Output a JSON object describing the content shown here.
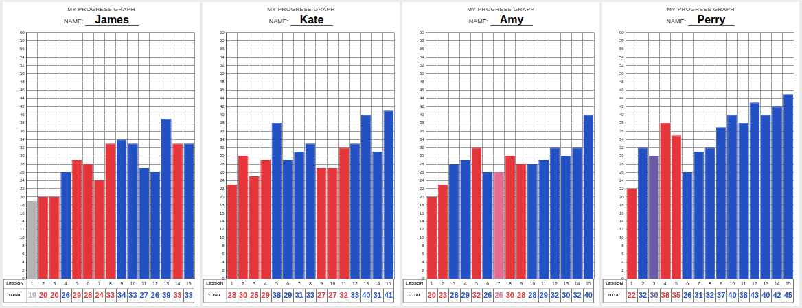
{
  "chart_data": [
    {
      "type": "bar",
      "title": "MY PROGRESS GRAPH",
      "name_label": "NAME:",
      "name": "James",
      "xlabel": "LESSON",
      "row_label": "TOTAL",
      "categories": [
        1,
        2,
        3,
        4,
        5,
        6,
        7,
        8,
        9,
        10,
        11,
        12,
        13,
        14,
        15
      ],
      "values": [
        19,
        20,
        20,
        26,
        29,
        28,
        24,
        33,
        34,
        33,
        27,
        26,
        39,
        33,
        33
      ],
      "colors": [
        "#b5b5b5",
        "#e4353b",
        "#e4353b",
        "#2350c2",
        "#e4353b",
        "#e4353b",
        "#e4353b",
        "#e4353b",
        "#2350c2",
        "#2350c2",
        "#2350c2",
        "#2350c2",
        "#2350c2",
        "#e4353b",
        "#2350c2"
      ],
      "ylim": [
        0,
        60
      ],
      "yticks": [
        0,
        2,
        4,
        6,
        8,
        10,
        12,
        14,
        16,
        18,
        20,
        22,
        24,
        26,
        28,
        30,
        32,
        34,
        36,
        38,
        40,
        42,
        44,
        46,
        48,
        50,
        52,
        54,
        56,
        58,
        60
      ],
      "grid": true,
      "data_labels": true
    },
    {
      "type": "bar",
      "title": "MY PROGRESS GRAPH",
      "name_label": "NAME:",
      "name": "Kate",
      "xlabel": "LESSON",
      "row_label": "TOTAL",
      "categories": [
        1,
        2,
        3,
        4,
        5,
        6,
        7,
        8,
        9,
        10,
        11,
        12,
        13,
        14,
        15
      ],
      "values": [
        23,
        30,
        25,
        29,
        38,
        29,
        31,
        33,
        27,
        27,
        32,
        33,
        40,
        31,
        41
      ],
      "colors": [
        "#e4353b",
        "#e4353b",
        "#e4353b",
        "#e4353b",
        "#2350c2",
        "#2350c2",
        "#2350c2",
        "#2350c2",
        "#e4353b",
        "#e4353b",
        "#e4353b",
        "#2350c2",
        "#2350c2",
        "#2350c2",
        "#2350c2"
      ],
      "ylim": [
        0,
        60
      ],
      "yticks": [
        0,
        2,
        4,
        6,
        8,
        10,
        12,
        14,
        16,
        18,
        20,
        22,
        24,
        26,
        28,
        30,
        32,
        34,
        36,
        38,
        40,
        42,
        44,
        46,
        48,
        50,
        52,
        54,
        56,
        58,
        60
      ],
      "grid": true,
      "data_labels": true
    },
    {
      "type": "bar",
      "title": "MY PROGRESS GRAPH",
      "name_label": "NAME:",
      "name": "Amy",
      "xlabel": "LESSON",
      "row_label": "TOTAL",
      "categories": [
        1,
        2,
        3,
        4,
        5,
        6,
        7,
        8,
        9,
        10,
        11,
        12,
        13,
        14,
        15
      ],
      "values": [
        20,
        23,
        28,
        29,
        32,
        26,
        26,
        30,
        28,
        28,
        29,
        32,
        30,
        32,
        40
      ],
      "colors": [
        "#e4353b",
        "#e4353b",
        "#2350c2",
        "#2350c2",
        "#e4353b",
        "#2350c2",
        "#e56a90",
        "#e4353b",
        "#e4353b",
        "#2350c2",
        "#2350c2",
        "#2350c2",
        "#2350c2",
        "#2350c2",
        "#2350c2"
      ],
      "ylim": [
        0,
        60
      ],
      "yticks": [
        0,
        2,
        4,
        6,
        8,
        10,
        12,
        14,
        16,
        18,
        20,
        22,
        24,
        26,
        28,
        30,
        32,
        34,
        36,
        38,
        40,
        42,
        44,
        46,
        48,
        50,
        52,
        54,
        56,
        58,
        60
      ],
      "grid": true,
      "data_labels": true
    },
    {
      "type": "bar",
      "title": "MY PROGRESS GRAPH",
      "name_label": "NAME:",
      "name": "Perry",
      "xlabel": "LESSON",
      "row_label": "TOTAL",
      "categories": [
        1,
        2,
        3,
        4,
        5,
        6,
        7,
        8,
        9,
        10,
        11,
        12,
        13,
        14,
        15
      ],
      "values": [
        22,
        32,
        30,
        38,
        35,
        26,
        31,
        32,
        37,
        40,
        38,
        43,
        40,
        42,
        45
      ],
      "colors": [
        "#e4353b",
        "#2350c2",
        "#6c5aa6",
        "#e4353b",
        "#e4353b",
        "#2350c2",
        "#2350c2",
        "#2350c2",
        "#2350c2",
        "#2350c2",
        "#2350c2",
        "#2350c2",
        "#2350c2",
        "#2350c2",
        "#2350c2"
      ],
      "ylim": [
        0,
        60
      ],
      "yticks": [
        0,
        2,
        4,
        6,
        8,
        10,
        12,
        14,
        16,
        18,
        20,
        22,
        24,
        26,
        28,
        30,
        32,
        34,
        36,
        38,
        40,
        42,
        44,
        46,
        48,
        50,
        52,
        54,
        56,
        58,
        60
      ],
      "grid": true,
      "data_labels": true
    }
  ]
}
